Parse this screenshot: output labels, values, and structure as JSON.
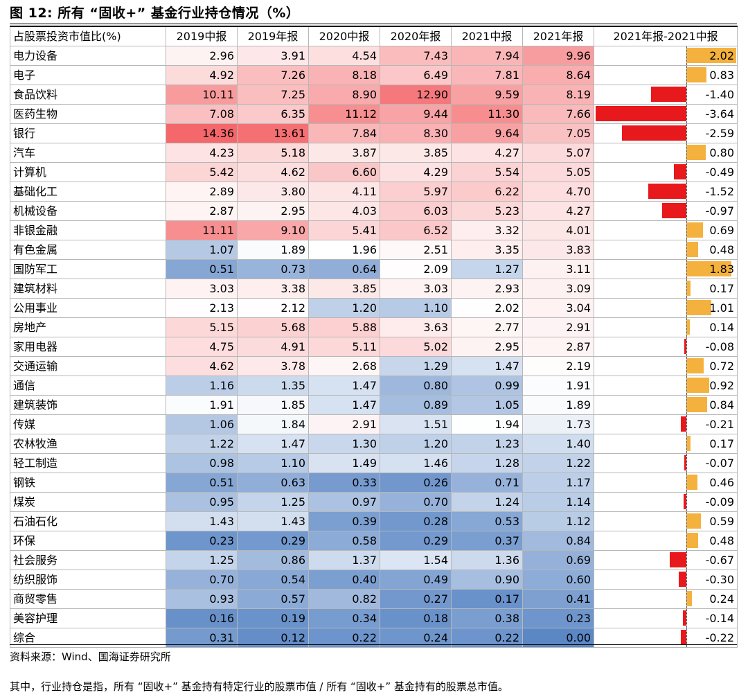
{
  "figure": {
    "title": "图 12: 所有 “固收+” 基金行业持仓情况（%）",
    "source": "资料来源：Wind、国海证券研究所",
    "note": "其中，行业持仓是指，所有 “固收+” 基金持有特定行业的股票市值 / 所有 “固收+” 基金持有的股票总市值。"
  },
  "colors": {
    "high": "#f4676a",
    "mid": "#ffffff",
    "low": "#5b87c5",
    "positive_bar": "#f5b13d",
    "negative_bar": "#e8191c"
  },
  "chart_data": {
    "type": "table",
    "title": "所有 “固收+” 基金行业持仓情况（%）",
    "header_category": "占股票投资市值比(%)",
    "columns": [
      "2019中报",
      "2019年报",
      "2020中报",
      "2020年报",
      "2021中报",
      "2021年报",
      "2021年报-2021中报"
    ],
    "heatmap_scale": {
      "min": 0,
      "max": 14.36
    },
    "diff_range": [
      -3.64,
      2.02
    ],
    "rows": [
      {
        "category": "电力设备",
        "values": [
          2.96,
          3.91,
          4.54,
          7.43,
          7.94,
          9.96
        ],
        "diff": 2.02
      },
      {
        "category": "电子",
        "values": [
          4.92,
          7.26,
          8.18,
          6.49,
          7.81,
          8.64
        ],
        "diff": 0.83
      },
      {
        "category": "食品饮料",
        "values": [
          10.11,
          7.25,
          8.9,
          12.9,
          9.59,
          8.19
        ],
        "diff": -1.4
      },
      {
        "category": "医药生物",
        "values": [
          7.08,
          6.35,
          11.12,
          9.44,
          11.3,
          7.66
        ],
        "diff": -3.64
      },
      {
        "category": "银行",
        "values": [
          14.36,
          13.61,
          7.84,
          8.3,
          9.64,
          7.05
        ],
        "diff": -2.59
      },
      {
        "category": "汽车",
        "values": [
          4.23,
          5.18,
          3.87,
          3.85,
          4.27,
          5.07
        ],
        "diff": 0.8
      },
      {
        "category": "计算机",
        "values": [
          5.42,
          4.62,
          6.6,
          4.29,
          5.54,
          5.05
        ],
        "diff": -0.49
      },
      {
        "category": "基础化工",
        "values": [
          2.89,
          3.8,
          4.11,
          5.97,
          6.22,
          4.7
        ],
        "diff": -1.52
      },
      {
        "category": "机械设备",
        "values": [
          2.87,
          2.95,
          4.03,
          6.03,
          5.23,
          4.27
        ],
        "diff": -0.97
      },
      {
        "category": "非银金融",
        "values": [
          11.11,
          9.1,
          5.41,
          6.52,
          3.32,
          4.01
        ],
        "diff": 0.69
      },
      {
        "category": "有色金属",
        "values": [
          1.07,
          1.89,
          1.96,
          2.51,
          3.35,
          3.83
        ],
        "diff": 0.48
      },
      {
        "category": "国防军工",
        "values": [
          0.51,
          0.73,
          0.64,
          2.09,
          1.27,
          3.11
        ],
        "diff": 1.83
      },
      {
        "category": "建筑材料",
        "values": [
          3.03,
          3.38,
          3.85,
          3.03,
          2.93,
          3.09
        ],
        "diff": 0.17
      },
      {
        "category": "公用事业",
        "values": [
          2.13,
          2.12,
          1.2,
          1.1,
          2.02,
          3.04
        ],
        "diff": 1.01
      },
      {
        "category": "房地产",
        "values": [
          5.15,
          5.68,
          5.88,
          3.63,
          2.77,
          2.91
        ],
        "diff": 0.14
      },
      {
        "category": "家用电器",
        "values": [
          4.75,
          4.91,
          5.11,
          5.02,
          2.95,
          2.87
        ],
        "diff": -0.08
      },
      {
        "category": "交通运输",
        "values": [
          4.62,
          3.78,
          2.68,
          1.29,
          1.47,
          2.19
        ],
        "diff": 0.72
      },
      {
        "category": "通信",
        "values": [
          1.16,
          1.35,
          1.47,
          0.8,
          0.99,
          1.91
        ],
        "diff": 0.92
      },
      {
        "category": "建筑装饰",
        "values": [
          1.91,
          1.85,
          1.47,
          0.89,
          1.05,
          1.89
        ],
        "diff": 0.84
      },
      {
        "category": "传媒",
        "values": [
          1.06,
          1.84,
          2.91,
          1.51,
          1.94,
          1.73
        ],
        "diff": -0.21
      },
      {
        "category": "农林牧渔",
        "values": [
          1.22,
          1.47,
          1.3,
          1.2,
          1.23,
          1.4
        ],
        "diff": 0.17
      },
      {
        "category": "轻工制造",
        "values": [
          0.98,
          1.1,
          1.49,
          1.46,
          1.28,
          1.22
        ],
        "diff": -0.07
      },
      {
        "category": "钢铁",
        "values": [
          0.51,
          0.63,
          0.33,
          0.26,
          0.71,
          1.17
        ],
        "diff": 0.46
      },
      {
        "category": "煤炭",
        "values": [
          0.95,
          1.25,
          0.97,
          0.7,
          1.24,
          1.14
        ],
        "diff": -0.09
      },
      {
        "category": "石油石化",
        "values": [
          1.43,
          1.43,
          0.39,
          0.28,
          0.53,
          1.12
        ],
        "diff": 0.59
      },
      {
        "category": "环保",
        "values": [
          0.23,
          0.29,
          0.58,
          0.29,
          0.37,
          0.84
        ],
        "diff": 0.48
      },
      {
        "category": "社会服务",
        "values": [
          1.25,
          0.86,
          1.37,
          1.54,
          1.36,
          0.69
        ],
        "diff": -0.67
      },
      {
        "category": "纺织服饰",
        "values": [
          0.7,
          0.54,
          0.4,
          0.49,
          0.9,
          0.6
        ],
        "diff": -0.3
      },
      {
        "category": "商贸零售",
        "values": [
          0.93,
          0.57,
          0.82,
          0.27,
          0.17,
          0.41
        ],
        "diff": 0.24
      },
      {
        "category": "美容护理",
        "values": [
          0.16,
          0.19,
          0.34,
          0.18,
          0.38,
          0.23
        ],
        "diff": -0.14
      },
      {
        "category": "综合",
        "values": [
          0.31,
          0.12,
          0.22,
          0.24,
          0.22,
          0.0
        ],
        "diff": -0.22
      }
    ]
  }
}
